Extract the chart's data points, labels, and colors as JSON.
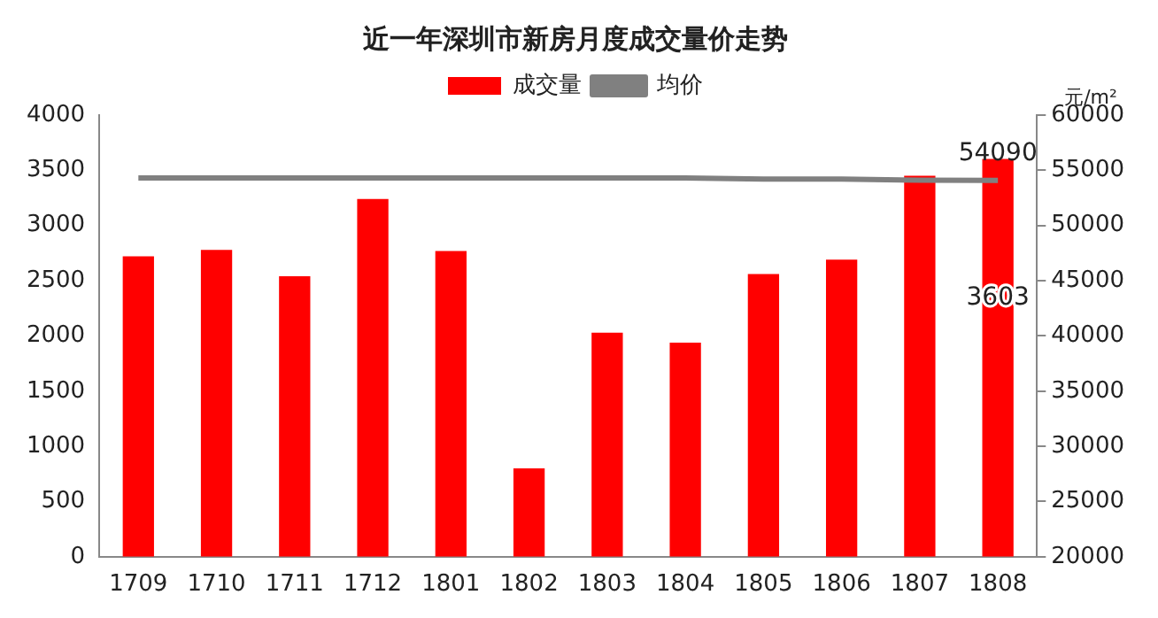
{
  "chart_data": {
    "type": "bar",
    "title": "近一年深圳市新房月度成交量价走势",
    "y2label": "元/m²",
    "categories": [
      "1709",
      "1710",
      "1711",
      "1712",
      "1801",
      "1802",
      "1803",
      "1804",
      "1805",
      "1806",
      "1807",
      "1808"
    ],
    "series": [
      {
        "name": "成交量",
        "color": "#ff0000",
        "values": [
          2720,
          2780,
          2540,
          3240,
          2770,
          800,
          2030,
          1940,
          2560,
          2690,
          3450,
          3603
        ],
        "value_labels": [
          null,
          null,
          null,
          null,
          null,
          null,
          null,
          null,
          null,
          null,
          null,
          "3603"
        ]
      },
      {
        "name": "均价",
        "type": "line",
        "axis": "y2",
        "color": "#808080",
        "values": [
          54300,
          54300,
          54300,
          54300,
          54300,
          54300,
          54300,
          54300,
          54200,
          54200,
          54100,
          54090
        ],
        "value_labels": [
          null,
          null,
          null,
          null,
          null,
          null,
          null,
          null,
          null,
          null,
          null,
          "54090"
        ]
      }
    ],
    "ylim": [
      0,
      4000
    ],
    "yticks": [
      0,
      500,
      1000,
      1500,
      2000,
      2500,
      3000,
      3500,
      4000
    ],
    "y2lim": [
      20000,
      60000
    ],
    "y2ticks": [
      20000,
      25000,
      30000,
      35000,
      40000,
      45000,
      50000,
      55000,
      60000
    ],
    "grid": false,
    "legend": "top",
    "marker": "none",
    "line_style": "solid"
  }
}
